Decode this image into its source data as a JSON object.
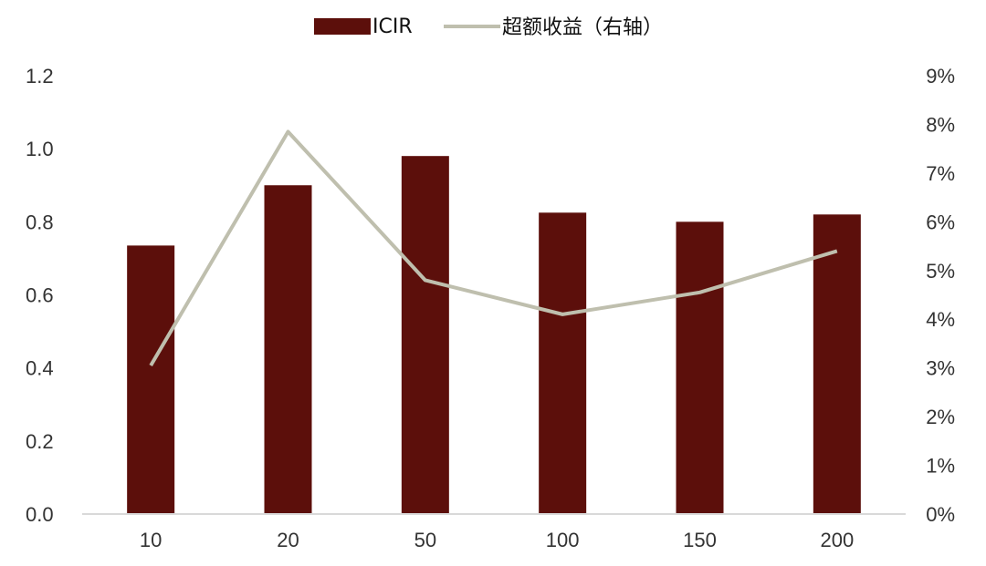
{
  "chart_data": {
    "type": "bar",
    "categories": [
      "10",
      "20",
      "50",
      "100",
      "150",
      "200"
    ],
    "series": [
      {
        "name": "ICIR",
        "type": "bar",
        "axis": "left",
        "color": "#5C0F0B",
        "values": [
          0.735,
          0.9,
          0.98,
          0.825,
          0.8,
          0.82
        ]
      },
      {
        "name": "超额收益（右轴）",
        "type": "line",
        "axis": "right",
        "color": "#BFBFAE",
        "values": [
          3.05,
          7.85,
          4.8,
          4.1,
          4.55,
          5.4
        ]
      }
    ],
    "left_axis": {
      "min": 0,
      "max": 1.2,
      "ticks": [
        "0.0",
        "0.2",
        "0.4",
        "0.6",
        "0.8",
        "1.0",
        "1.2"
      ]
    },
    "right_axis": {
      "min": 0,
      "max": 9,
      "unit": "%",
      "ticks": [
        "0%",
        "1%",
        "2%",
        "3%",
        "4%",
        "5%",
        "6%",
        "7%",
        "8%",
        "9%"
      ]
    },
    "legend": {
      "position": "top"
    },
    "grid": false
  }
}
